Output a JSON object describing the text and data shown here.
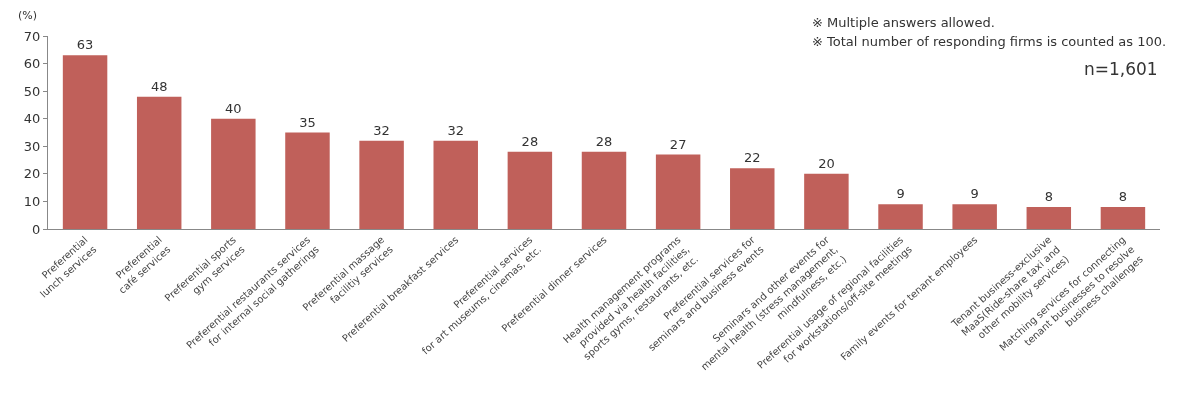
{
  "chart_data": {
    "type": "bar",
    "ylabel": "(%)",
    "categories": [
      "Preferential\nlunch services",
      "Preferential\ncafé services",
      "Preferential sports\ngym services",
      "Preferential restaurants services\nfor internal social gatherings",
      "Preferential massage\nfacilitiy services",
      "Preferential breakfast services",
      "Preferential services\nfor art museums, cinemas, etc.",
      "Preferential dinner services",
      "Health management programs\nprovided via health facilities,\nsports gyms, restaurants, etc.",
      "Preferential services for\nseminars and business events",
      "Seminars and other events for\nmental health (stress management,\nmindfulness, etc.)",
      "Preferential usage of regional facilities\nfor workstations/off-site meetings",
      "Family events for tenant employees",
      "Tenant business-exclusive\nMaaS(Ride-share taxi and\nother mobility services)",
      "Matching services for connecting\ntenant businesses to resolve\nbusiness challenges"
    ],
    "values": [
      63,
      48,
      40,
      35,
      32,
      32,
      28,
      28,
      27,
      22,
      20,
      9,
      9,
      8,
      8
    ],
    "color": "#c0605a",
    "ylim": [
      0,
      70
    ],
    "yticks": [
      0,
      10,
      20,
      30,
      40,
      50,
      60,
      70
    ],
    "grid": false,
    "data_labels": true,
    "annotations": [
      "※ Multiple answers allowed.",
      "※ Total number of responding firms is counted as 100.",
      "n=1,601"
    ]
  }
}
